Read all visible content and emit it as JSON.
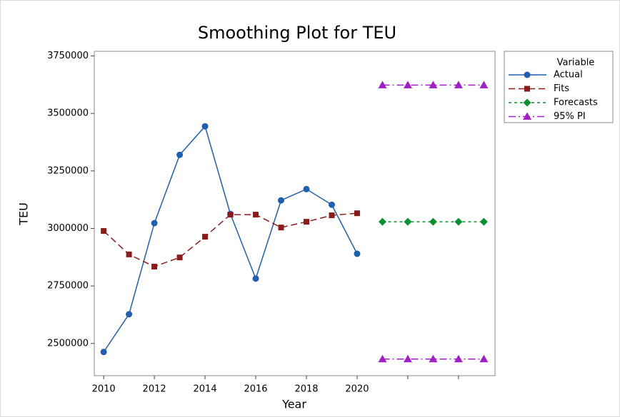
{
  "chart_data": {
    "type": "line",
    "title": "Smoothing Plot for TEU",
    "x_label": "Year",
    "y_label": "TEU",
    "xlim": [
      2009.63,
      2025.44
    ],
    "xticks": [
      2010,
      2012,
      2014,
      2016,
      2018,
      2020
    ],
    "xticks_unlabeled": [
      2022,
      2024
    ],
    "ylim": [
      2360000,
      3770000
    ],
    "yticks": [
      2500000,
      2750000,
      3000000,
      3250000,
      3500000,
      3750000
    ],
    "legend_title": "Variable",
    "legend": "right",
    "series": [
      {
        "name": "Actual",
        "color": "#1f5fae",
        "marker": "circle",
        "linestyle": "solid",
        "x": [
          2010,
          2011,
          2012,
          2013,
          2014,
          2015,
          2016,
          2017,
          2018,
          2019,
          2020
        ],
        "values": [
          2463000,
          2627000,
          3023000,
          3320000,
          3444000,
          3063000,
          2782000,
          3122000,
          3171000,
          3103000,
          2890000
        ]
      },
      {
        "name": "Fits",
        "color": "#8b1c1c",
        "marker": "square",
        "linestyle": "dashed",
        "x": [
          2010,
          2011,
          2012,
          2013,
          2014,
          2015,
          2016,
          2017,
          2018,
          2019,
          2020
        ],
        "values": [
          2989000,
          2887000,
          2834000,
          2874000,
          2964000,
          3060000,
          3060000,
          3004000,
          3029000,
          3057000,
          3066000
        ]
      },
      {
        "name": "Forecasts",
        "color": "#0b9030",
        "marker": "diamond",
        "linestyle": "dotted",
        "x": [
          2021,
          2022,
          2023,
          2024,
          2025
        ],
        "values": [
          3029000,
          3029000,
          3029000,
          3029000,
          3029000
        ]
      },
      {
        "name": "95% PI",
        "color": "#a020c8",
        "marker": "triangle",
        "linestyle": "dashdot",
        "x": [
          2021,
          2022,
          2023,
          2024,
          2025
        ],
        "values": [
          3623000,
          3623000,
          3623000,
          3623000,
          3623000
        ],
        "lower": [
          2432000,
          2432000,
          2432000,
          2432000,
          2432000
        ]
      }
    ]
  }
}
